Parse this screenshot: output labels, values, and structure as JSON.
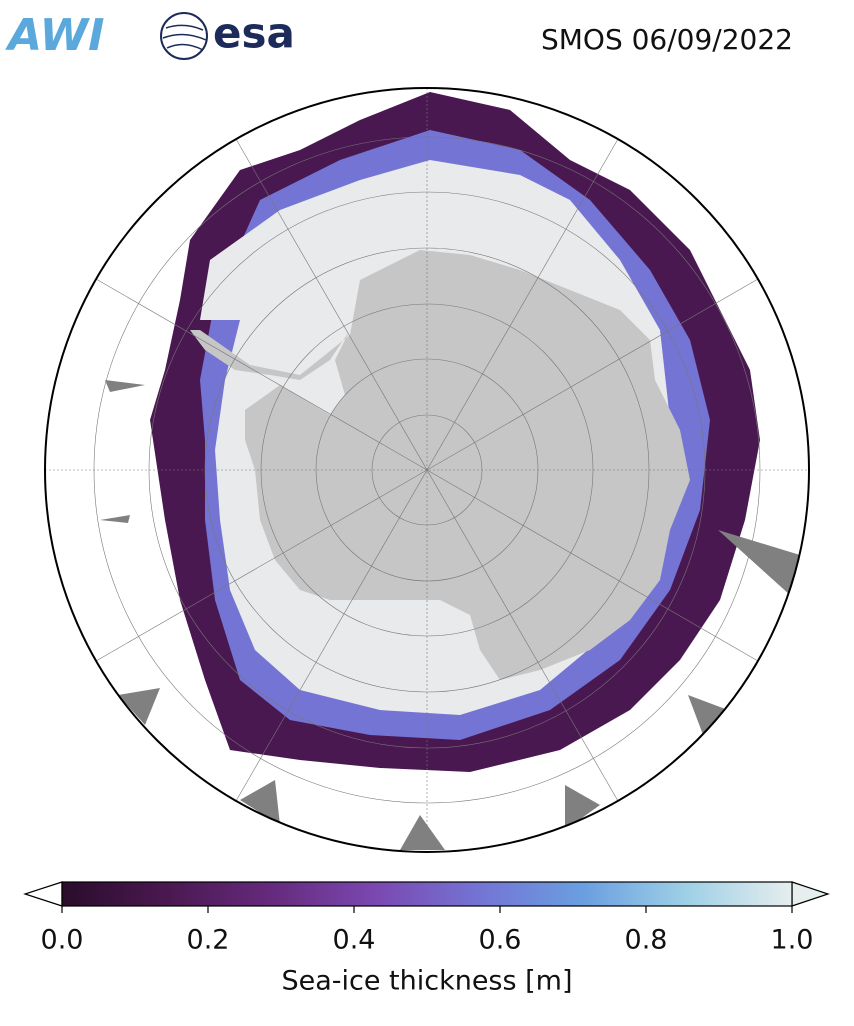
{
  "header": {
    "logos": [
      "AWI",
      "esa"
    ],
    "title": "SMOS 06/09/2022"
  },
  "colorbar": {
    "label": "Sea-ice thickness [m]",
    "lim": [
      0,
      1
    ],
    "ticks": [
      {
        "value": 0,
        "label": "0.0"
      },
      {
        "value": 0.2,
        "label": "0.2"
      },
      {
        "value": 0.4,
        "label": "0.4"
      },
      {
        "value": 0.6,
        "label": "0.6"
      },
      {
        "value": 0.8,
        "label": "0.8"
      },
      {
        "value": 1,
        "label": "1.0"
      }
    ],
    "colors": [
      "#2a0d2b",
      "#4a1850",
      "#652a7c",
      "#7a48b0",
      "#7474d4",
      "#6a9fe0",
      "#9fd0e6",
      "#e6eeee"
    ]
  }
}
